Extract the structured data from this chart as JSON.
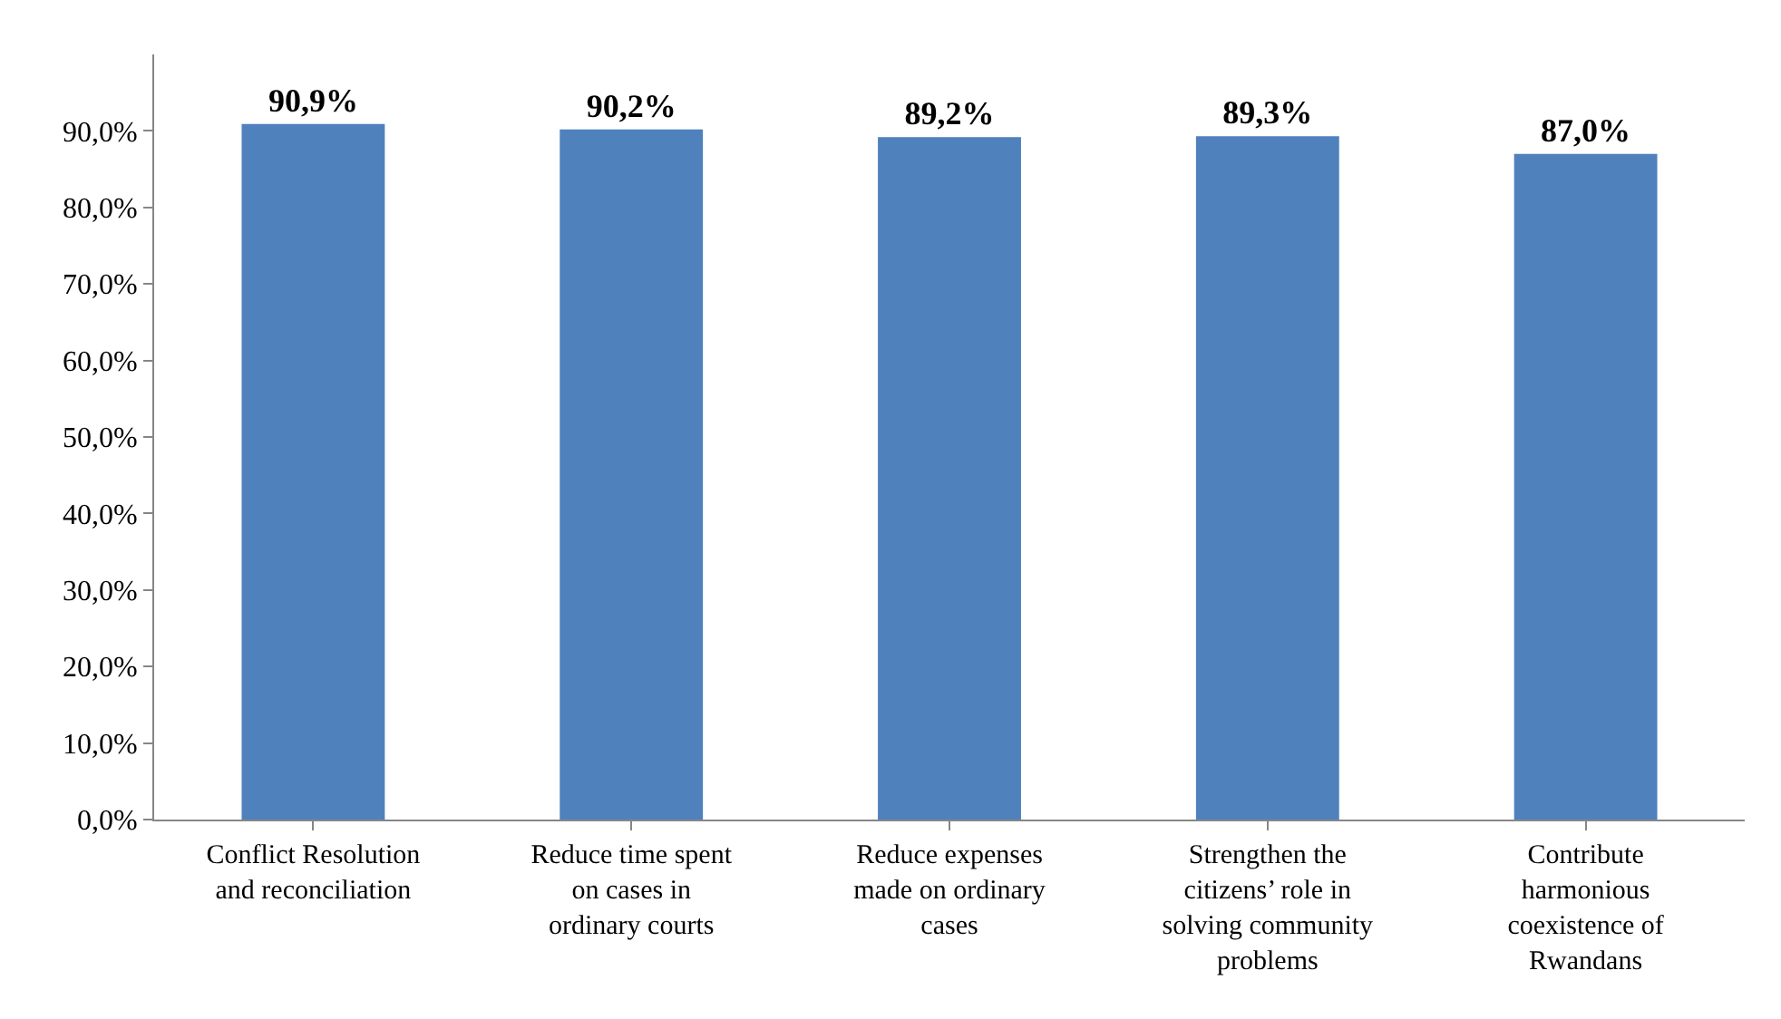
{
  "chart_data": {
    "type": "bar",
    "categories": [
      "Conflict Resolution and reconciliation",
      "Reduce time spent on cases in ordinary courts",
      "Reduce expenses made on ordinary cases",
      "Strengthen the citizens’ role in solving community problems",
      "Contribute harmonious coexistence of Rwandans"
    ],
    "values": [
      90.9,
      90.2,
      89.2,
      89.3,
      87.0
    ],
    "value_labels": [
      "90,9%",
      "90,2%",
      "89,2%",
      "89,3%",
      "87,0%"
    ],
    "color": "#4f81bd",
    "ylim": [
      0,
      100
    ],
    "yticks": [
      {
        "value": 0,
        "label": "0,0%"
      },
      {
        "value": 10,
        "label": "10,0%"
      },
      {
        "value": 20,
        "label": "20,0%"
      },
      {
        "value": 30,
        "label": "30,0%"
      },
      {
        "value": 40,
        "label": "40,0%"
      },
      {
        "value": 50,
        "label": "50,0%"
      },
      {
        "value": 60,
        "label": "60,0%"
      },
      {
        "value": 70,
        "label": "70,0%"
      },
      {
        "value": 80,
        "label": "80,0%"
      },
      {
        "value": 90,
        "label": "90,0%"
      }
    ],
    "grid": false
  }
}
